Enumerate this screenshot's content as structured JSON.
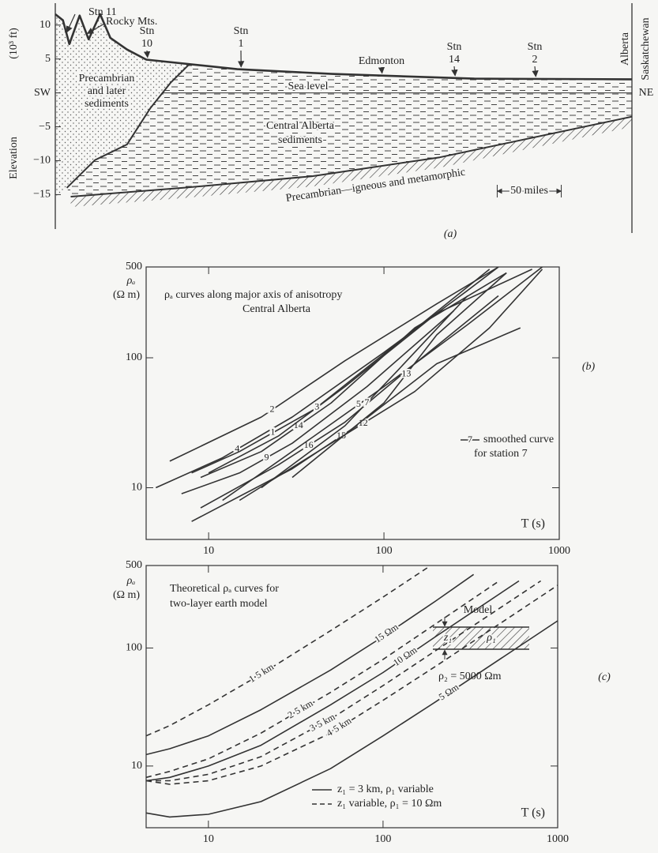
{
  "chart_data": [
    {
      "type": "section",
      "panel": "(a)",
      "ylabel": [
        "Elevation",
        "(10³ ft)"
      ],
      "xlim": [
        0,
        450
      ],
      "ylim": [
        -16,
        13
      ],
      "yticks": [
        10,
        5,
        {
          "value": -5,
          "label": "−5"
        },
        {
          "value": -10,
          "label": "−10"
        },
        {
          "value": -15,
          "label": "−15"
        }
      ],
      "color": "#333",
      "surface": {
        "x": [
          0,
          6,
          11,
          19,
          26,
          35,
          43,
          56,
          71,
          142,
          216,
          327,
          450
        ],
        "values": [
          11.6,
          10.7,
          7.2,
          11.4,
          7.9,
          11.6,
          8.1,
          6.4,
          4.9,
          3.5,
          2.8,
          2.1,
          2.0
        ]
      },
      "boundary": {
        "x": [
          9,
          31,
          56,
          74,
          90,
          105
        ],
        "values": [
          -14,
          -9.9,
          -7.6,
          -2.3,
          1.5,
          4.3
        ]
      },
      "basement": {
        "x": [
          12,
          100,
          200,
          300,
          450
        ],
        "values": [
          -15.3,
          -14,
          -12.3,
          -9.5,
          -3.5
        ]
      },
      "sea_level": {
        "value": 0,
        "label": "Sea level"
      },
      "stations": [
        "Stn 11",
        "Rocky Mts.",
        [
          "Stn",
          "10"
        ],
        [
          "Stn",
          "1"
        ],
        "Edmonton",
        [
          "Stn",
          "14"
        ],
        [
          "Stn",
          "2"
        ]
      ],
      "regions": {
        "precambrian_sediments": [
          "Precambrian",
          "and later",
          "sediments"
        ],
        "central": [
          "Central Alberta",
          "sediments"
        ],
        "basement": "Precambrian—igneous and metamorphic"
      },
      "sides": {
        "left": "SW",
        "right": "NE"
      },
      "provinces": [
        "Alberta",
        "Saskatchewan"
      ],
      "scale_bar": {
        "value": 50,
        "label": "50 miles"
      }
    },
    {
      "type": "log",
      "panel": "(b)",
      "title": [
        "ρₐ curves along major axis of anisotropy",
        "Central Alberta"
      ],
      "ylabel": [
        "ρₐ",
        "(Ω m)"
      ],
      "xlabel": "T (s)",
      "xlim": [
        4.4,
        1000
      ],
      "ylim": [
        4,
        500
      ],
      "xticks": [
        10,
        100,
        1000
      ],
      "yticks": [
        10,
        100,
        500
      ],
      "color": "#333",
      "series": [
        {
          "name": "2",
          "x": [
            6,
            20,
            60,
            200,
            450
          ],
          "values": [
            16,
            35,
            95,
            260,
            500
          ]
        },
        {
          "name": "4",
          "x": [
            5,
            12,
            30,
            100,
            300,
            450
          ],
          "values": [
            10,
            17,
            35,
            110,
            330,
            500
          ]
        },
        {
          "name": "1",
          "x": [
            8,
            15,
            40,
            120,
            400
          ],
          "values": [
            13,
            19,
            40,
            130,
            480
          ]
        },
        {
          "name": "14",
          "x": [
            9,
            20,
            50,
            150,
            500
          ],
          "values": [
            12,
            19,
            45,
            170,
            450
          ]
        },
        {
          "name": "3",
          "x": [
            10,
            25,
            60,
            200,
            700
          ],
          "values": [
            13,
            25,
            60,
            220,
            480
          ]
        },
        {
          "name": "9",
          "x": [
            7,
            15,
            30,
            80,
            250
          ],
          "values": [
            9,
            13,
            22,
            60,
            230
          ]
        },
        {
          "name": "16",
          "x": [
            9,
            25,
            60,
            150,
            450
          ],
          "values": [
            7,
            15,
            32,
            90,
            300
          ]
        },
        {
          "name": "15",
          "x": [
            8,
            30,
            70,
            200,
            600
          ],
          "values": [
            5.5,
            14,
            30,
            90,
            170
          ]
        },
        {
          "name": "5",
          "x": [
            12,
            40,
            100,
            300,
            800
          ],
          "values": [
            8,
            25,
            60,
            180,
            500
          ]
        },
        {
          "name": "12",
          "x": [
            15,
            50,
            150,
            400,
            800
          ],
          "values": [
            8,
            22,
            55,
            170,
            480
          ]
        },
        {
          "name": "7",
          "x": [
            20,
            60,
            120,
            300
          ],
          "values": [
            10,
            30,
            80,
            300
          ]
        },
        {
          "name": "13",
          "x": [
            30,
            100,
            200,
            500
          ],
          "values": [
            12,
            45,
            150,
            450
          ]
        }
      ],
      "note": {
        "marker": "7",
        "lines": [
          "smoothed curve",
          "for station 7"
        ]
      }
    },
    {
      "type": "log",
      "panel": "(c)",
      "title": [
        "Theoretical ρₐ curves for",
        "two-layer earth model"
      ],
      "ylabel": [
        "ρₐ",
        "(Ω m)"
      ],
      "xlabel": "T (s)",
      "xlim": [
        4.4,
        1000
      ],
      "ylim": [
        3,
        500
      ],
      "xticks": [
        10,
        100,
        1000
      ],
      "yticks": [
        10,
        100,
        500
      ],
      "color": "#333",
      "series": [
        {
          "name": "1·5 km",
          "dashed": true,
          "x": [
            4.4,
            6,
            10,
            20,
            50,
            100,
            180
          ],
          "values": [
            18,
            22,
            33,
            60,
            140,
            270,
            480
          ]
        },
        {
          "name": "15 Ωm",
          "dashed": false,
          "x": [
            4.4,
            6,
            10,
            20,
            50,
            100,
            200,
            330
          ],
          "values": [
            12.5,
            14,
            18,
            30,
            65,
            125,
            250,
            420
          ]
        },
        {
          "name": "2·5 km",
          "dashed": true,
          "x": [
            4.4,
            6,
            10,
            20,
            50,
            100,
            200,
            450
          ],
          "values": [
            8,
            9,
            11.5,
            19,
            42,
            80,
            160,
            360
          ]
        },
        {
          "name": "10 Ωm",
          "dashed": false,
          "x": [
            4.4,
            6,
            10,
            20,
            50,
            100,
            200,
            600
          ],
          "values": [
            7.5,
            8,
            10,
            15,
            33,
            62,
            125,
            370
          ]
        },
        {
          "name": "3·5 km",
          "dashed": true,
          "x": [
            4.4,
            6,
            10,
            20,
            50,
            100,
            200,
            800
          ],
          "values": [
            7.5,
            7.5,
            8.5,
            12,
            25,
            48,
            95,
            370
          ]
        },
        {
          "name": "4·5 km",
          "dashed": true,
          "x": [
            4.4,
            6,
            10,
            20,
            50,
            100,
            200,
            1000
          ],
          "values": [
            7.5,
            7,
            7.5,
            10,
            19,
            36,
            70,
            340
          ]
        },
        {
          "name": "5 Ωm",
          "dashed": false,
          "x": [
            4.4,
            6,
            10,
            20,
            50,
            100,
            200,
            1000
          ],
          "values": [
            4,
            3.7,
            3.9,
            5,
            9.5,
            18,
            35,
            170
          ]
        }
      ],
      "legend": [
        {
          "label": "z₁ = 3 km, ρ₁ variable",
          "dashed": false
        },
        {
          "label": "z₁ variable, ρ₁ = 10 Ωm",
          "dashed": true
        }
      ],
      "model": {
        "title": "Model",
        "depth": "z₁",
        "resistivity": "ρ₁",
        "basement": "ρ₂ = 5000 Ωm"
      }
    }
  ]
}
